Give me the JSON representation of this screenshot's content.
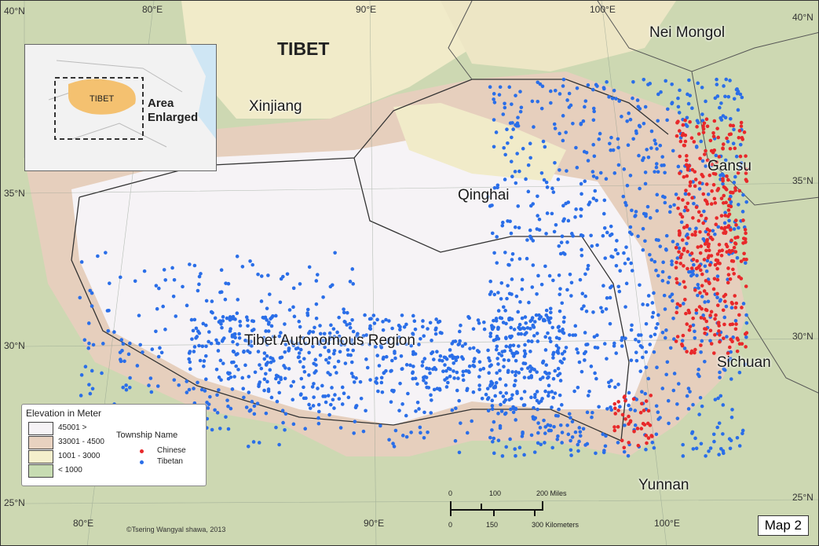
{
  "title": "TIBET",
  "regions": {
    "xinjiang": "Xinjiang",
    "nei_mongol": "Nei Mongol",
    "qinghai": "Qinghai",
    "gansu": "Gansu",
    "tar": "Tibet Autonomous Region",
    "sichuan": "Sichuan",
    "yunnan": "Yunnan"
  },
  "graticule": {
    "top_lon": [
      "80°E",
      "90°E",
      "100°E"
    ],
    "bottom_lon": [
      "80°E",
      "90°E",
      "100°E"
    ],
    "left_lat": [
      "40°N",
      "35°N",
      "30°N",
      "25°N"
    ],
    "right_lat": [
      "40°N",
      "35°N",
      "30°N",
      "25°N"
    ]
  },
  "inset": {
    "label": "TIBET",
    "caption_line1": "Area",
    "caption_line2": "Enlarged"
  },
  "legend": {
    "elevation_title": "Elevation in Meter",
    "elevation_classes": [
      {
        "label": "45001 >",
        "color": "#f6f3f6"
      },
      {
        "label": "33001 - 4500",
        "color": "#e8d2c0"
      },
      {
        "label": "1001 - 3000",
        "color": "#f5efcc"
      },
      {
        "label": "< 1000",
        "color": "#c7dcb2"
      }
    ],
    "township_title": "Township Name",
    "township_classes": [
      {
        "label": "Chinese",
        "color": "#e8282a"
      },
      {
        "label": "Tibetan",
        "color": "#2a6ee8"
      }
    ]
  },
  "scale_bar": {
    "miles": [
      "0",
      "100",
      "200 Miles"
    ],
    "km": [
      "0",
      "150",
      "300 Kilometers"
    ]
  },
  "credit": "©Tsering Wangyal shawa, 2013",
  "map_number": "Map 2"
}
